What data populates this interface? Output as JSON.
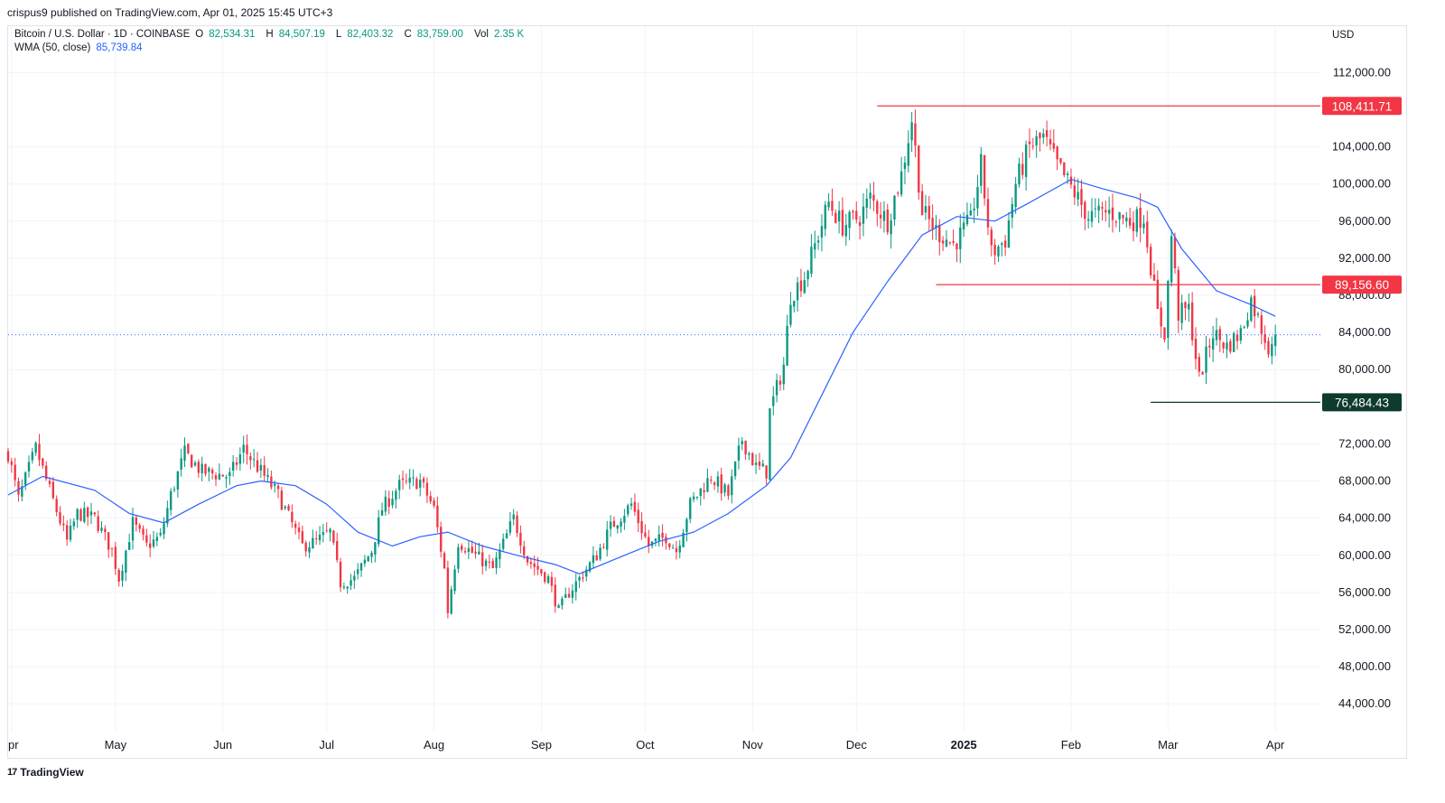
{
  "header": {
    "published_by": "crispus9 published on TradingView.com, Apr 01, 2025 15:45 UTC+3"
  },
  "legend": {
    "symbol": "Bitcoin / U.S. Dollar · 1D · COINBASE",
    "open_label": "O",
    "open": "82,534.31",
    "high_label": "H",
    "high": "84,507.19",
    "low_label": "L",
    "low": "82,403.32",
    "close_label": "C",
    "close": "83,759.00",
    "vol_label": "Vol",
    "vol": "2.35 K",
    "wma_label": "WMA (50, close)",
    "wma_value": "85,739.84"
  },
  "currency": "USD",
  "footer": {
    "brand": "TradingView",
    "brand_mark": "17"
  },
  "colors": {
    "up": "#089981",
    "down": "#f23645",
    "wma": "#2962ff",
    "resistance": "#f23645",
    "support": "#0d3b2e",
    "grid": "#f0f3fa"
  },
  "chart_data": {
    "type": "candlestick",
    "title": "Bitcoin / U.S. Dollar · 1D · COINBASE",
    "ylim": [
      41000,
      117000
    ],
    "y_ticks": [
      {
        "value": 112000,
        "label": "112,000.00"
      },
      {
        "value": 104000,
        "label": "104,000.00"
      },
      {
        "value": 100000,
        "label": "100,000.00"
      },
      {
        "value": 96000,
        "label": "96,000.00"
      },
      {
        "value": 92000,
        "label": "92,000.00"
      },
      {
        "value": 88000,
        "label": "88,000.00"
      },
      {
        "value": 84000,
        "label": "84,000.00"
      },
      {
        "value": 80000,
        "label": "80,000.00"
      },
      {
        "value": 72000,
        "label": "72,000.00"
      },
      {
        "value": 68000,
        "label": "68,000.00"
      },
      {
        "value": 64000,
        "label": "64,000.00"
      },
      {
        "value": 60000,
        "label": "60,000.00"
      },
      {
        "value": 56000,
        "label": "56,000.00"
      },
      {
        "value": 52000,
        "label": "52,000.00"
      },
      {
        "value": 48000,
        "label": "48,000.00"
      },
      {
        "value": 44000,
        "label": "44,000.00"
      }
    ],
    "x_ticks": [
      {
        "label": "Apr",
        "date": "2024-04-01",
        "shown": "pr",
        "bold": false
      },
      {
        "label": "May",
        "date": "2024-05-01",
        "shown": "May",
        "bold": false
      },
      {
        "label": "Jun",
        "date": "2024-06-01",
        "shown": "Jun",
        "bold": false
      },
      {
        "label": "Jul",
        "date": "2024-07-01",
        "shown": "Jul",
        "bold": false
      },
      {
        "label": "Aug",
        "date": "2024-08-01",
        "shown": "Aug",
        "bold": false
      },
      {
        "label": "Sep",
        "date": "2024-09-01",
        "shown": "Sep",
        "bold": false
      },
      {
        "label": "Oct",
        "date": "2024-10-01",
        "shown": "Oct",
        "bold": false
      },
      {
        "label": "Nov",
        "date": "2024-11-01",
        "shown": "Nov",
        "bold": false
      },
      {
        "label": "Dec",
        "date": "2024-12-01",
        "shown": "Dec",
        "bold": false
      },
      {
        "label": "2025",
        "date": "2025-01-01",
        "shown": "2025",
        "bold": true
      },
      {
        "label": "Feb",
        "date": "2025-02-01",
        "shown": "Feb",
        "bold": false
      },
      {
        "label": "Mar",
        "date": "2025-03-01",
        "shown": "Mar",
        "bold": false
      },
      {
        "label": "Apr",
        "date": "2025-04-01",
        "shown": "Apr",
        "bold": false
      }
    ],
    "x_range": [
      "2024-03-31",
      "2025-04-14"
    ],
    "horizontal_levels": [
      {
        "value": 108411.71,
        "label": "108,411.71",
        "kind": "resistance",
        "from": "2024-12-07",
        "to": "2025-04-14"
      },
      {
        "value": 89156.6,
        "label": "89,156.60",
        "kind": "resistance",
        "from": "2024-12-24",
        "to": "2025-04-14"
      },
      {
        "value": 76484.43,
        "label": "76,484.43",
        "kind": "support",
        "from": "2025-02-24",
        "to": "2025-04-14"
      }
    ],
    "last_price": 83759.0,
    "close_path": [
      [
        "2024-03-31",
        71000
      ],
      [
        "2024-04-03",
        66000
      ],
      [
        "2024-04-08",
        71500
      ],
      [
        "2024-04-12",
        67000
      ],
      [
        "2024-04-17",
        61500
      ],
      [
        "2024-04-20",
        64500
      ],
      [
        "2024-04-25",
        64000
      ],
      [
        "2024-04-30",
        60500
      ],
      [
        "2024-05-02",
        57500
      ],
      [
        "2024-05-06",
        63500
      ],
      [
        "2024-05-10",
        61000
      ],
      [
        "2024-05-14",
        62000
      ],
      [
        "2024-05-17",
        66500
      ],
      [
        "2024-05-21",
        71000
      ],
      [
        "2024-05-26",
        69000
      ],
      [
        "2024-06-03",
        68500
      ],
      [
        "2024-06-07",
        71500
      ],
      [
        "2024-06-12",
        69000
      ],
      [
        "2024-06-17",
        66500
      ],
      [
        "2024-06-24",
        61000
      ],
      [
        "2024-06-28",
        61500
      ],
      [
        "2024-07-02",
        62500
      ],
      [
        "2024-07-05",
        57000
      ],
      [
        "2024-07-09",
        57500
      ],
      [
        "2024-07-14",
        60500
      ],
      [
        "2024-07-17",
        65000
      ],
      [
        "2024-07-22",
        67500
      ],
      [
        "2024-07-28",
        68000
      ],
      [
        "2024-08-01",
        65000
      ],
      [
        "2024-08-04",
        58500
      ],
      [
        "2024-08-05",
        54000
      ],
      [
        "2024-08-08",
        61500
      ],
      [
        "2024-08-13",
        60000
      ],
      [
        "2024-08-18",
        58500
      ],
      [
        "2024-08-24",
        64000
      ],
      [
        "2024-08-28",
        59500
      ],
      [
        "2024-09-03",
        57500
      ],
      [
        "2024-09-06",
        54000
      ],
      [
        "2024-09-09",
        56000
      ],
      [
        "2024-09-13",
        58000
      ],
      [
        "2024-09-17",
        60000
      ],
      [
        "2024-09-21",
        63000
      ],
      [
        "2024-09-27",
        65500
      ],
      [
        "2024-10-02",
        61000
      ],
      [
        "2024-10-07",
        62000
      ],
      [
        "2024-10-10",
        60500
      ],
      [
        "2024-10-14",
        65500
      ],
      [
        "2024-10-20",
        68500
      ],
      [
        "2024-10-25",
        66500
      ],
      [
        "2024-10-29",
        72500
      ],
      [
        "2024-11-02",
        69500
      ],
      [
        "2024-11-05",
        69000
      ],
      [
        "2024-11-06",
        75500
      ],
      [
        "2024-11-10",
        80500
      ],
      [
        "2024-11-12",
        88000
      ],
      [
        "2024-11-16",
        90000
      ],
      [
        "2024-11-20",
        94500
      ],
      [
        "2024-11-23",
        98000
      ],
      [
        "2024-11-27",
        95500
      ],
      [
        "2024-12-02",
        96500
      ],
      [
        "2024-12-05",
        98500
      ],
      [
        "2024-12-10",
        96000
      ],
      [
        "2024-12-14",
        101000
      ],
      [
        "2024-12-17",
        107000
      ],
      [
        "2024-12-20",
        97000
      ],
      [
        "2024-12-24",
        95000
      ],
      [
        "2024-12-29",
        93500
      ],
      [
        "2025-01-03",
        96000
      ],
      [
        "2025-01-06",
        102000
      ],
      [
        "2025-01-09",
        92500
      ],
      [
        "2025-01-13",
        94000
      ],
      [
        "2025-01-16",
        100000
      ],
      [
        "2025-01-20",
        104000
      ],
      [
        "2025-01-24",
        105000
      ],
      [
        "2025-01-28",
        102000
      ],
      [
        "2025-02-02",
        99000
      ],
      [
        "2025-02-06",
        96500
      ],
      [
        "2025-02-12",
        97000
      ],
      [
        "2025-02-18",
        96000
      ],
      [
        "2025-02-22",
        96500
      ],
      [
        "2025-02-26",
        86000
      ],
      [
        "2025-02-28",
        84000
      ],
      [
        "2025-03-02",
        94500
      ],
      [
        "2025-03-04",
        86000
      ],
      [
        "2025-03-07",
        86500
      ],
      [
        "2025-03-10",
        79000
      ],
      [
        "2025-03-14",
        84000
      ],
      [
        "2025-03-18",
        82500
      ],
      [
        "2025-03-22",
        84000
      ],
      [
        "2025-03-25",
        87500
      ],
      [
        "2025-03-28",
        84500
      ],
      [
        "2025-03-30",
        82500
      ],
      [
        "2025-04-01",
        83759
      ]
    ],
    "wma": [
      [
        "2024-03-31",
        66500
      ],
      [
        "2024-04-10",
        68500
      ],
      [
        "2024-04-25",
        67000
      ],
      [
        "2024-05-05",
        64500
      ],
      [
        "2024-05-15",
        63500
      ],
      [
        "2024-05-25",
        65500
      ],
      [
        "2024-06-05",
        67500
      ],
      [
        "2024-06-12",
        68000
      ],
      [
        "2024-06-22",
        67500
      ],
      [
        "2024-07-01",
        65500
      ],
      [
        "2024-07-10",
        62500
      ],
      [
        "2024-07-20",
        61000
      ],
      [
        "2024-07-28",
        62000
      ],
      [
        "2024-08-05",
        62500
      ],
      [
        "2024-08-15",
        61000
      ],
      [
        "2024-08-25",
        60000
      ],
      [
        "2024-09-05",
        59000
      ],
      [
        "2024-09-12",
        58000
      ],
      [
        "2024-09-25",
        60000
      ],
      [
        "2024-10-05",
        61500
      ],
      [
        "2024-10-15",
        62500
      ],
      [
        "2024-10-25",
        64500
      ],
      [
        "2024-11-05",
        67500
      ],
      [
        "2024-11-12",
        70500
      ],
      [
        "2024-11-20",
        76500
      ],
      [
        "2024-11-30",
        84000
      ],
      [
        "2024-12-10",
        89500
      ],
      [
        "2024-12-20",
        94500
      ],
      [
        "2024-12-30",
        96500
      ],
      [
        "2025-01-10",
        96000
      ],
      [
        "2025-01-20",
        98000
      ],
      [
        "2025-02-01",
        100500
      ],
      [
        "2025-02-10",
        99500
      ],
      [
        "2025-02-20",
        98500
      ],
      [
        "2025-02-26",
        97500
      ],
      [
        "2025-03-05",
        93000
      ],
      [
        "2025-03-15",
        88500
      ],
      [
        "2025-03-25",
        87000
      ],
      [
        "2025-04-01",
        85740
      ]
    ]
  }
}
